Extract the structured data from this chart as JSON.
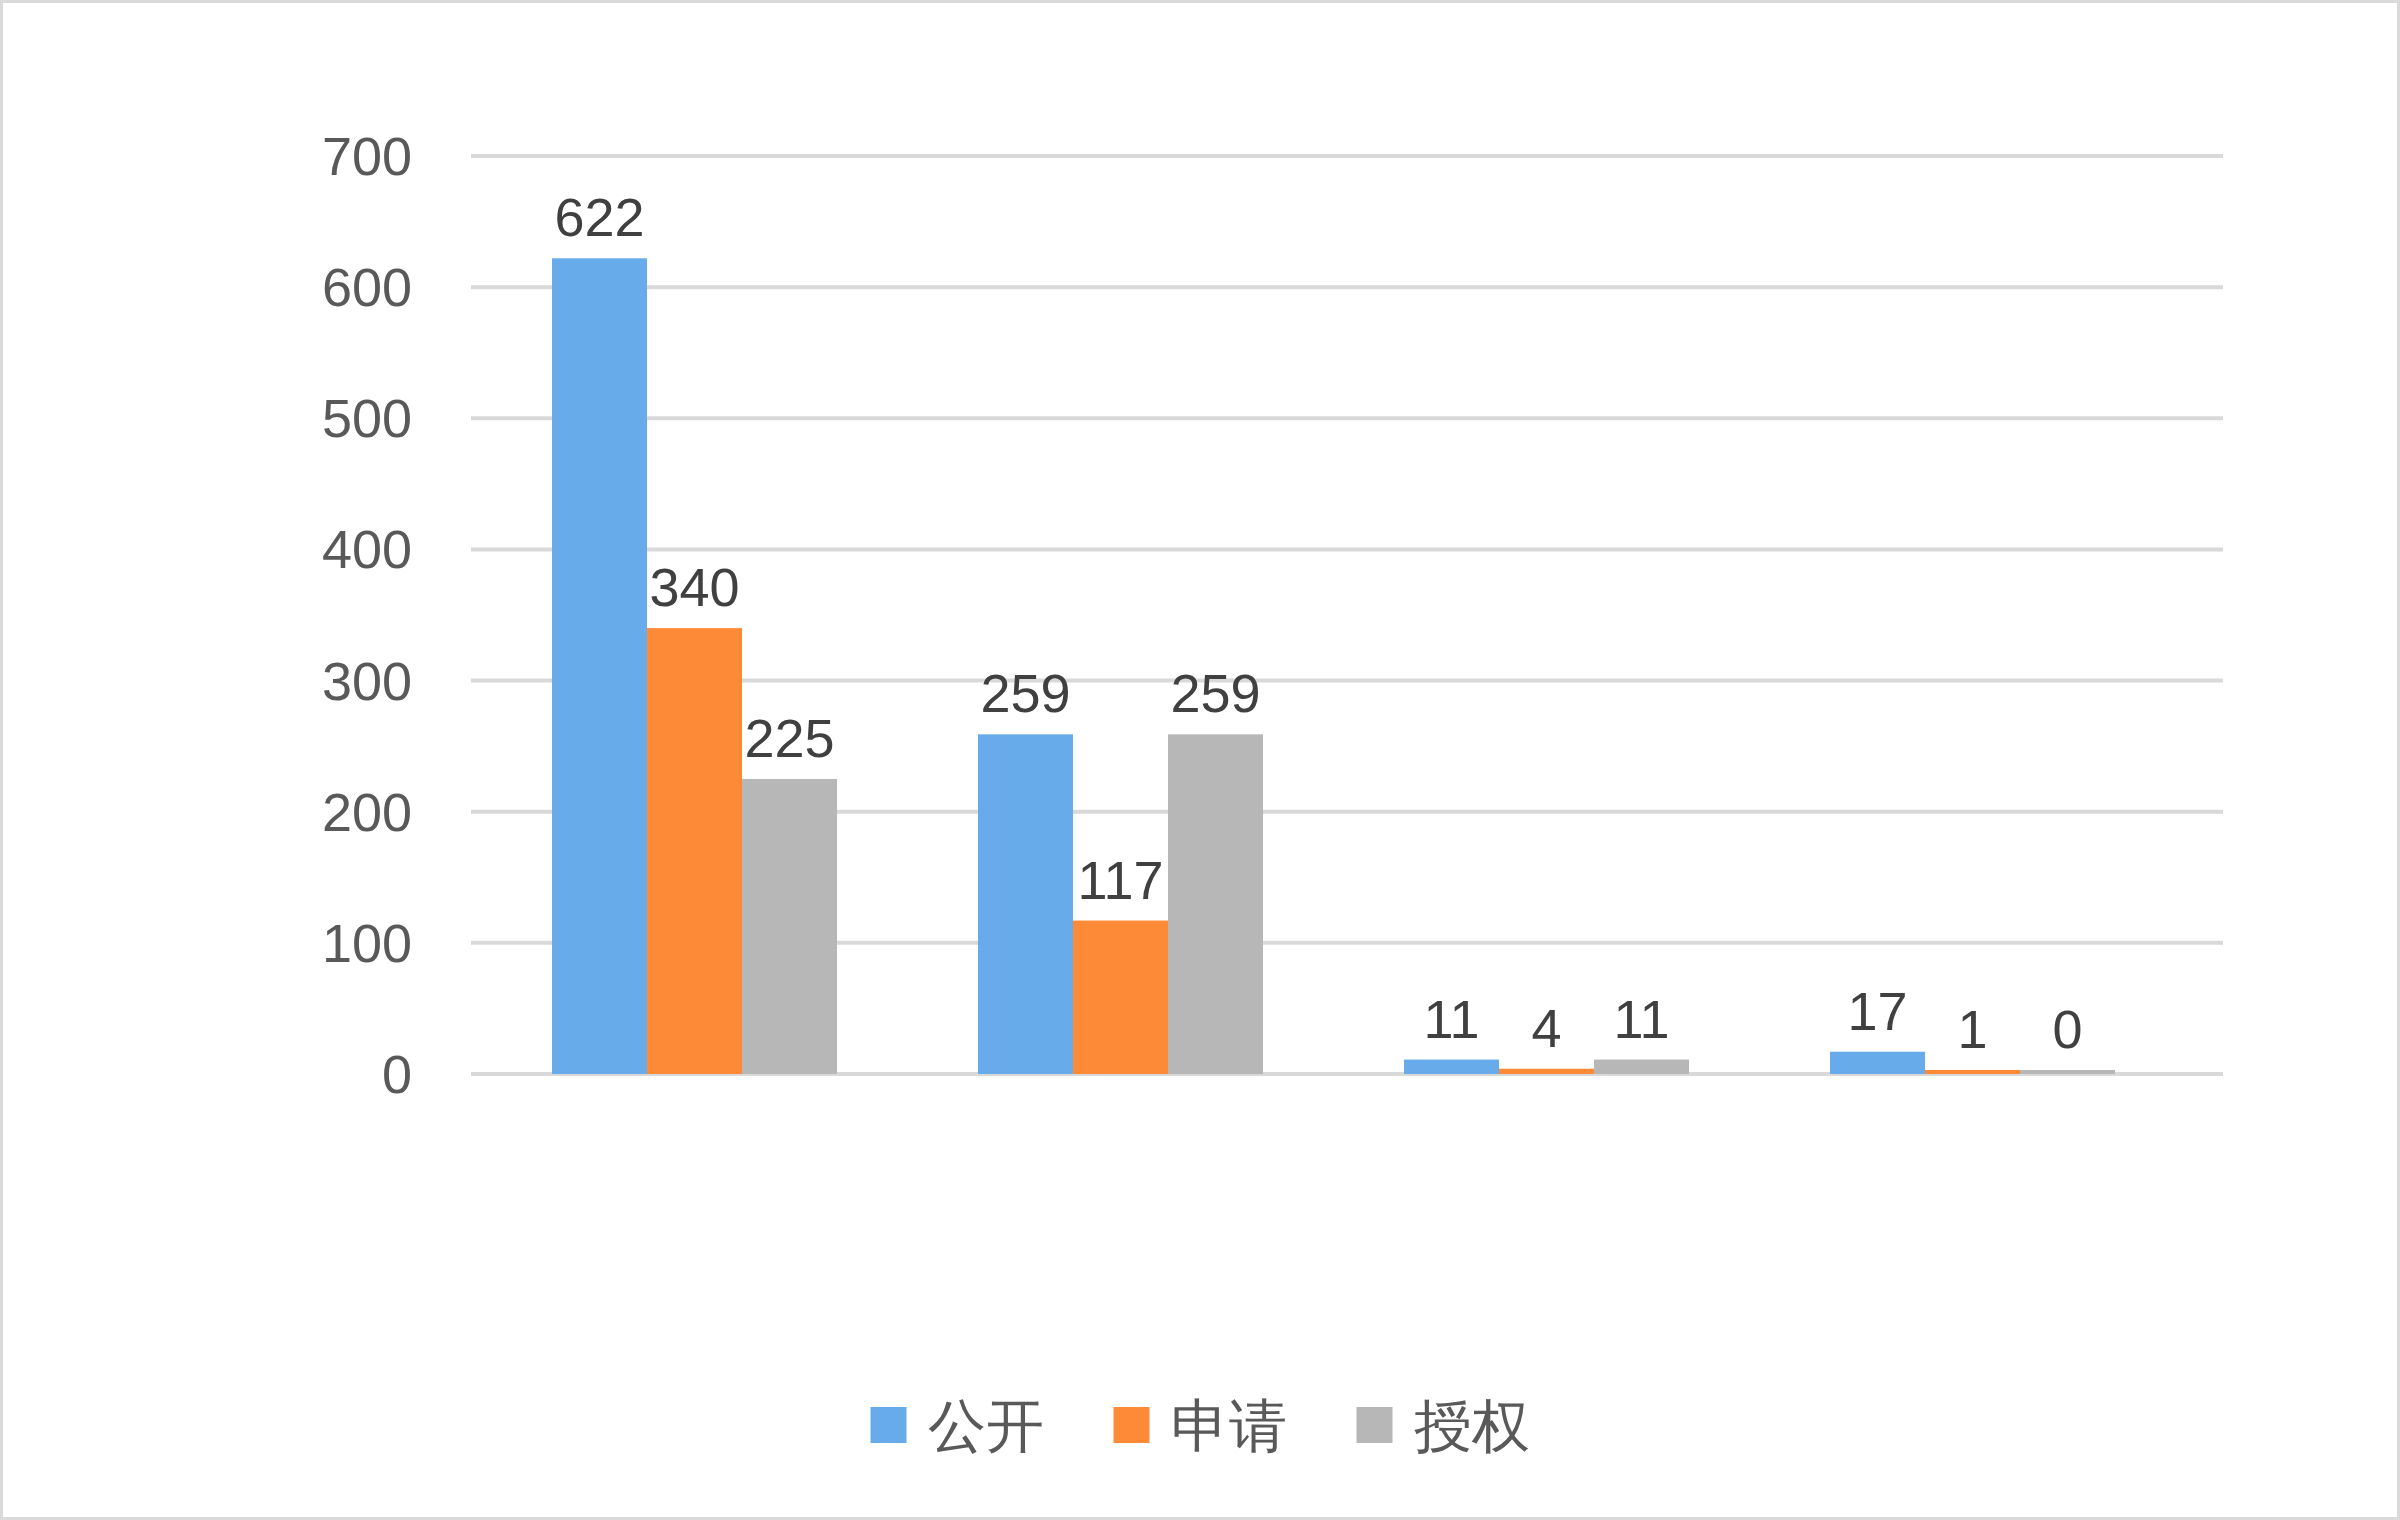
{
  "chart_data": {
    "type": "bar",
    "categories": [
      null,
      null,
      null,
      null
    ],
    "series": [
      {
        "name": "公开",
        "color": "#67abea",
        "values": [
          622,
          259,
          11,
          17
        ]
      },
      {
        "name": "申请",
        "color": "#fd8a37",
        "values": [
          340,
          117,
          4,
          1
        ]
      },
      {
        "name": "授权",
        "color": "#b7b7b7",
        "values": [
          225,
          259,
          11,
          0
        ]
      }
    ],
    "ylim": [
      0,
      700
    ],
    "yticks": [
      0,
      100,
      200,
      300,
      400,
      500,
      600,
      700
    ],
    "grid": "y",
    "legend": "bottom",
    "data_labels": true,
    "tick_labels": "y"
  }
}
